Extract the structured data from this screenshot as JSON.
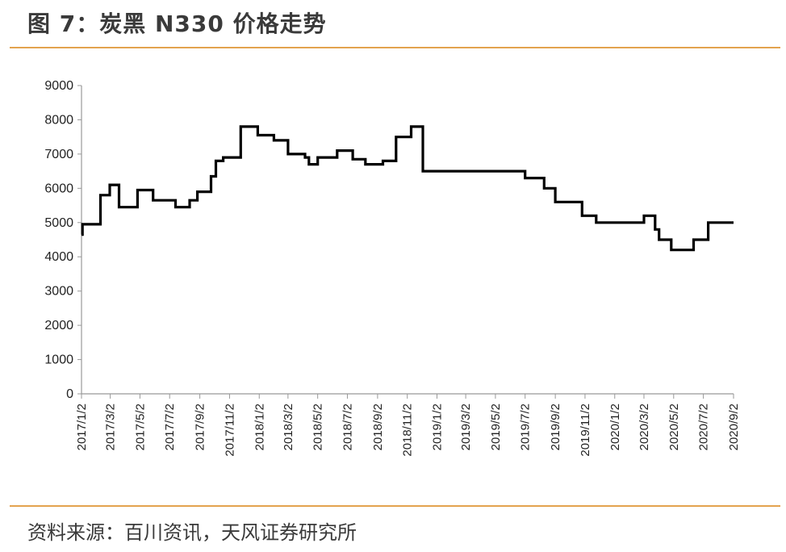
{
  "header": {
    "title": "图 7：炭黑 N330 价格走势"
  },
  "footer": {
    "source": "资料来源：百川资讯，天风证券研究所"
  },
  "colors": {
    "line": "#000000",
    "accent_rule": "#e3a34e"
  },
  "chart_data": {
    "type": "line",
    "title": "",
    "xlabel": "",
    "ylabel": "",
    "ylim": [
      0,
      9000
    ],
    "yticks": [
      0,
      1000,
      2000,
      3000,
      4000,
      5000,
      6000,
      7000,
      8000,
      9000
    ],
    "xlim": [
      "2017/1/2",
      "2020/9/2"
    ],
    "xtick_labels": [
      "2017/1/2",
      "2017/3/2",
      "2017/5/2",
      "2017/7/2",
      "2017/9/2",
      "2017/11/2",
      "2018/1/2",
      "2018/3/2",
      "2018/5/2",
      "2018/7/2",
      "2018/9/2",
      "2018/11/2",
      "2019/1/2",
      "2019/3/2",
      "2019/5/2",
      "2019/7/2",
      "2019/9/2",
      "2019/11/2",
      "2020/1/2",
      "2020/3/2",
      "2020/5/2",
      "2020/7/2",
      "2020/9/2"
    ],
    "grid": false,
    "legend": "none",
    "series": [
      {
        "step": true,
        "points": [
          [
            "2017/1/2",
            4650
          ],
          [
            "2017/1/4",
            4950
          ],
          [
            "2017/2/10",
            5800
          ],
          [
            "2017/3/1",
            6100
          ],
          [
            "2017/3/20",
            5450
          ],
          [
            "2017/4/27",
            5950
          ],
          [
            "2017/5/29",
            5650
          ],
          [
            "2017/7/14",
            5450
          ],
          [
            "2017/8/12",
            5650
          ],
          [
            "2017/8/28",
            5900
          ],
          [
            "2017/9/25",
            6350
          ],
          [
            "2017/10/5",
            6800
          ],
          [
            "2017/10/20",
            6900
          ],
          [
            "2017/11/25",
            7800
          ],
          [
            "2017/12/30",
            7550
          ],
          [
            "2018/2/1",
            7400
          ],
          [
            "2018/3/2",
            7000
          ],
          [
            "2018/4/6",
            6900
          ],
          [
            "2018/4/14",
            6700
          ],
          [
            "2018/5/2",
            6900
          ],
          [
            "2018/6/11",
            7100
          ],
          [
            "2018/7/13",
            6850
          ],
          [
            "2018/8/8",
            6700
          ],
          [
            "2018/9/13",
            6800
          ],
          [
            "2018/10/10",
            7500
          ],
          [
            "2018/11/10",
            7800
          ],
          [
            "2018/12/4",
            6500
          ],
          [
            "2019/7/2",
            6300
          ],
          [
            "2019/8/10",
            6000
          ],
          [
            "2019/9/2",
            5600
          ],
          [
            "2019/10/27",
            5200
          ],
          [
            "2019/11/25",
            5000
          ],
          [
            "2020/3/2",
            5200
          ],
          [
            "2020/3/25",
            4800
          ],
          [
            "2020/4/2",
            4500
          ],
          [
            "2020/4/27",
            4200
          ],
          [
            "2020/6/12",
            4500
          ],
          [
            "2020/7/12",
            5000
          ],
          [
            "2020/9/2",
            5000
          ]
        ]
      }
    ]
  }
}
